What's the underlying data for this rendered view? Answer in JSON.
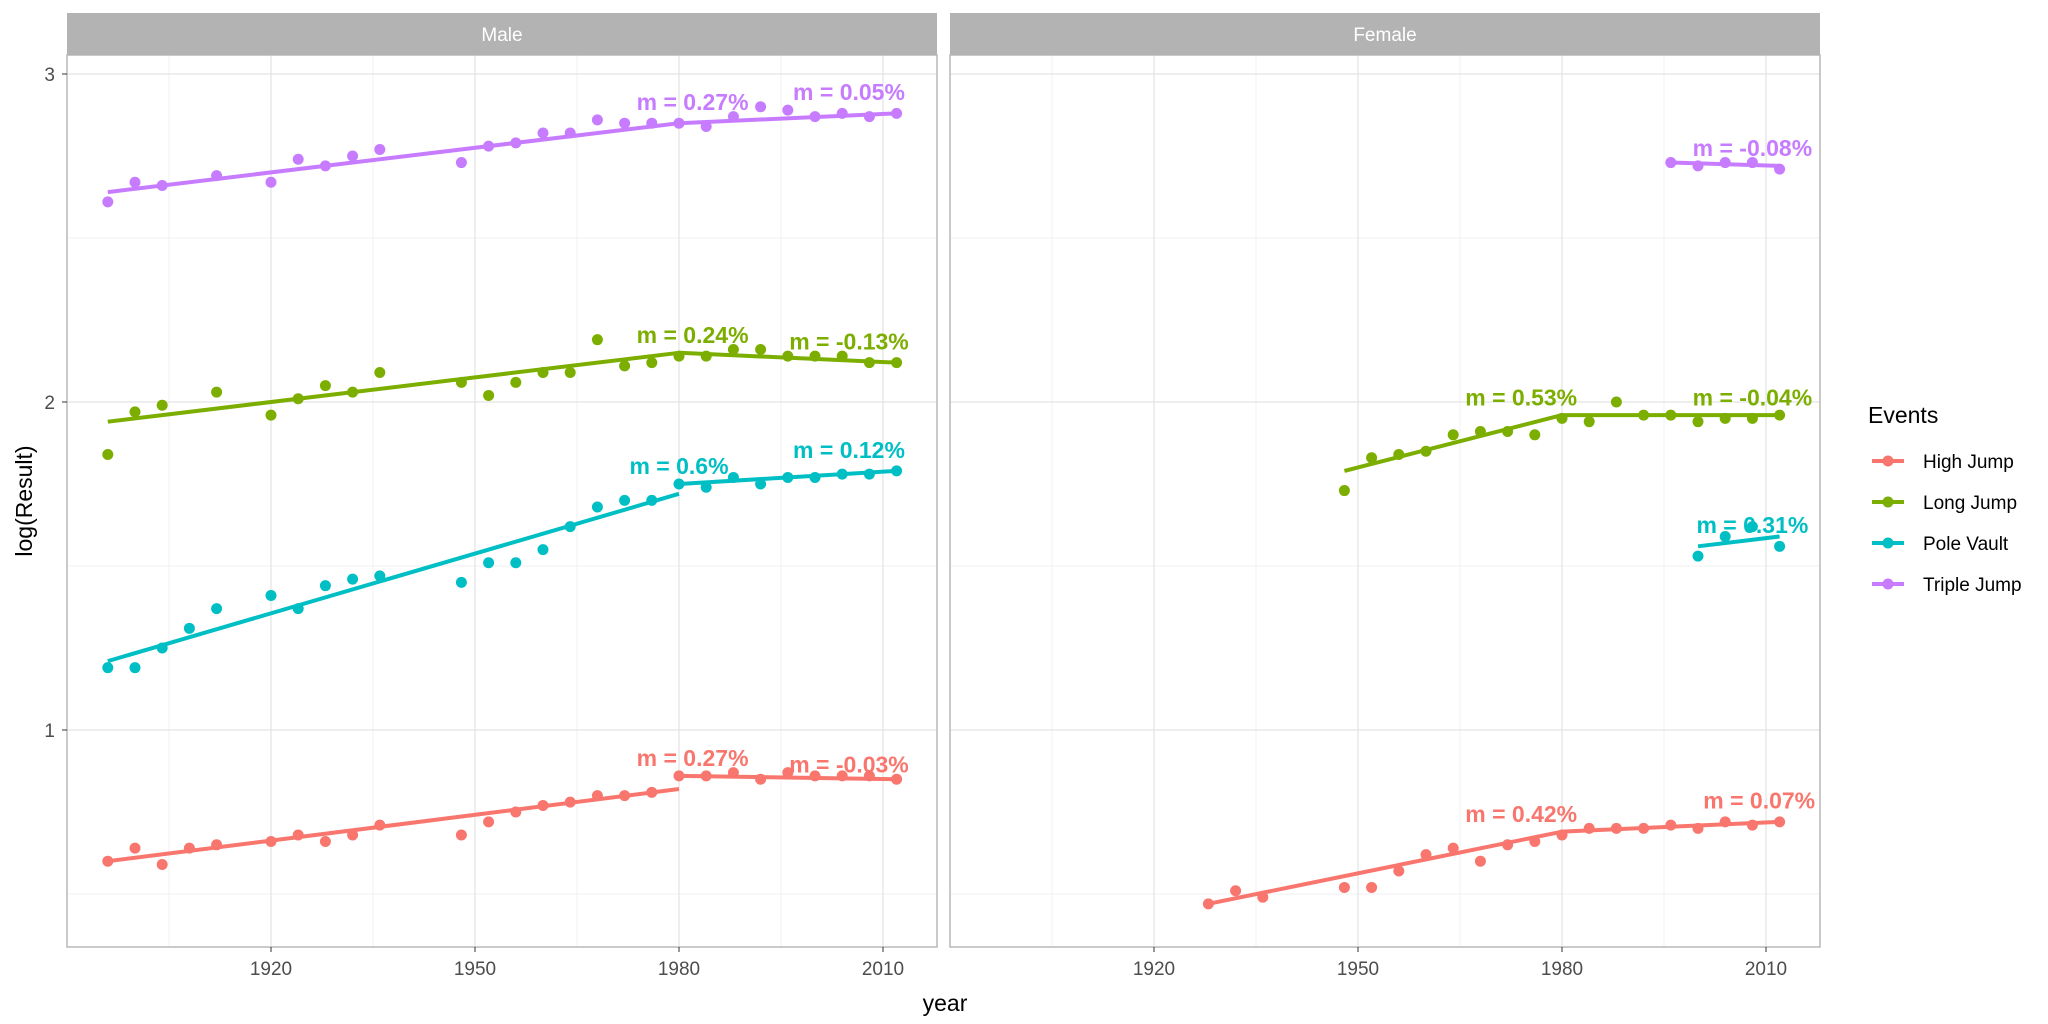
{
  "chart_data": {
    "type": "scatter",
    "title": "",
    "xlabel": "year",
    "ylabel": "log(Result)",
    "xlim": [
      1890,
      2018
    ],
    "ylim": [
      0.45,
      3.05
    ],
    "x_ticks": [
      1920,
      1950,
      1980,
      2010
    ],
    "y_ticks": [
      1,
      2,
      3
    ],
    "grid": true,
    "facets": [
      "Male",
      "Female"
    ],
    "legend": {
      "title": "Events",
      "position": "right",
      "entries": [
        {
          "name": "High Jump",
          "color": "#F8766D"
        },
        {
          "name": "Long Jump",
          "color": "#7CAE00"
        },
        {
          "name": "Pole Vault",
          "color": "#00BFC4"
        },
        {
          "name": "Triple Jump",
          "color": "#C77CFF"
        }
      ]
    },
    "panels": [
      {
        "facet": "Male",
        "series": [
          {
            "name": "Triple Jump",
            "color": "#C77CFF",
            "points": [
              [
                1896,
                2.61
              ],
              [
                1900,
                2.67
              ],
              [
                1904,
                2.66
              ],
              [
                1912,
                2.69
              ],
              [
                1920,
                2.67
              ],
              [
                1924,
                2.74
              ],
              [
                1928,
                2.72
              ],
              [
                1932,
                2.75
              ],
              [
                1936,
                2.77
              ],
              [
                1948,
                2.73
              ],
              [
                1952,
                2.78
              ],
              [
                1956,
                2.79
              ],
              [
                1960,
                2.82
              ],
              [
                1964,
                2.82
              ],
              [
                1968,
                2.86
              ],
              [
                1972,
                2.85
              ],
              [
                1976,
                2.85
              ],
              [
                1980,
                2.85
              ],
              [
                1984,
                2.84
              ],
              [
                1988,
                2.87
              ],
              [
                1992,
                2.9
              ],
              [
                1996,
                2.89
              ],
              [
                2000,
                2.87
              ],
              [
                2004,
                2.88
              ],
              [
                2008,
                2.87
              ],
              [
                2012,
                2.88
              ]
            ],
            "fits": [
              {
                "x": [
                  1896,
                  1980
                ],
                "y": [
                  2.64,
                  2.85
                ],
                "label": "m = 0.27%",
                "label_pos": [
                  1982,
                  2.89
                ]
              },
              {
                "x": [
                  1980,
                  2012
                ],
                "y": [
                  2.85,
                  2.88
                ],
                "label": "m = 0.05%",
                "label_pos": [
                  2005,
                  2.92
                ]
              }
            ]
          },
          {
            "name": "Long Jump",
            "color": "#7CAE00",
            "points": [
              [
                1896,
                1.84
              ],
              [
                1900,
                1.97
              ],
              [
                1904,
                1.99
              ],
              [
                1912,
                2.03
              ],
              [
                1920,
                1.96
              ],
              [
                1924,
                2.01
              ],
              [
                1928,
                2.05
              ],
              [
                1932,
                2.03
              ],
              [
                1936,
                2.09
              ],
              [
                1948,
                2.06
              ],
              [
                1952,
                2.02
              ],
              [
                1956,
                2.06
              ],
              [
                1960,
                2.09
              ],
              [
                1964,
                2.09
              ],
              [
                1968,
                2.19
              ],
              [
                1972,
                2.11
              ],
              [
                1976,
                2.12
              ],
              [
                1980,
                2.14
              ],
              [
                1984,
                2.14
              ],
              [
                1988,
                2.16
              ],
              [
                1992,
                2.16
              ],
              [
                1996,
                2.14
              ],
              [
                2000,
                2.14
              ],
              [
                2004,
                2.14
              ],
              [
                2008,
                2.12
              ],
              [
                2012,
                2.12
              ]
            ],
            "fits": [
              {
                "x": [
                  1896,
                  1980
                ],
                "y": [
                  1.94,
                  2.15
                ],
                "label": "m = 0.24%",
                "label_pos": [
                  1982,
                  2.18
                ]
              },
              {
                "x": [
                  1980,
                  2012
                ],
                "y": [
                  2.15,
                  2.12
                ],
                "label": "m = -0.13%",
                "label_pos": [
                  2005,
                  2.16
                ]
              }
            ]
          },
          {
            "name": "Pole Vault",
            "color": "#00BFC4",
            "points": [
              [
                1896,
                1.19
              ],
              [
                1900,
                1.19
              ],
              [
                1904,
                1.25
              ],
              [
                1908,
                1.31
              ],
              [
                1912,
                1.37
              ],
              [
                1920,
                1.41
              ],
              [
                1924,
                1.37
              ],
              [
                1928,
                1.44
              ],
              [
                1932,
                1.46
              ],
              [
                1936,
                1.47
              ],
              [
                1948,
                1.45
              ],
              [
                1952,
                1.51
              ],
              [
                1956,
                1.51
              ],
              [
                1960,
                1.55
              ],
              [
                1964,
                1.62
              ],
              [
                1968,
                1.68
              ],
              [
                1972,
                1.7
              ],
              [
                1976,
                1.7
              ],
              [
                1980,
                1.75
              ],
              [
                1984,
                1.74
              ],
              [
                1988,
                1.77
              ],
              [
                1992,
                1.75
              ],
              [
                1996,
                1.77
              ],
              [
                2000,
                1.77
              ],
              [
                2004,
                1.78
              ],
              [
                2008,
                1.78
              ],
              [
                2012,
                1.79
              ]
            ],
            "fits": [
              {
                "x": [
                  1896,
                  1980
                ],
                "y": [
                  1.21,
                  1.72
                ],
                "label": "m = 0.6%",
                "label_pos": [
                  1980,
                  1.78
                ]
              },
              {
                "x": [
                  1980,
                  2012
                ],
                "y": [
                  1.75,
                  1.79
                ],
                "label": "m = 0.12%",
                "label_pos": [
                  2005,
                  1.83
                ]
              }
            ]
          },
          {
            "name": "High Jump",
            "color": "#F8766D",
            "points": [
              [
                1896,
                0.6
              ],
              [
                1900,
                0.64
              ],
              [
                1904,
                0.59
              ],
              [
                1908,
                0.64
              ],
              [
                1912,
                0.65
              ],
              [
                1920,
                0.66
              ],
              [
                1924,
                0.68
              ],
              [
                1928,
                0.66
              ],
              [
                1932,
                0.68
              ],
              [
                1936,
                0.71
              ],
              [
                1948,
                0.68
              ],
              [
                1952,
                0.72
              ],
              [
                1956,
                0.75
              ],
              [
                1960,
                0.77
              ],
              [
                1964,
                0.78
              ],
              [
                1968,
                0.8
              ],
              [
                1972,
                0.8
              ],
              [
                1976,
                0.81
              ],
              [
                1980,
                0.86
              ],
              [
                1984,
                0.86
              ],
              [
                1988,
                0.87
              ],
              [
                1992,
                0.85
              ],
              [
                1996,
                0.87
              ],
              [
                2000,
                0.86
              ],
              [
                2004,
                0.86
              ],
              [
                2008,
                0.86
              ],
              [
                2012,
                0.85
              ]
            ],
            "fits": [
              {
                "x": [
                  1896,
                  1980
                ],
                "y": [
                  0.6,
                  0.82
                ],
                "label": "m = 0.27%",
                "label_pos": [
                  1982,
                  0.89
                ]
              },
              {
                "x": [
                  1980,
                  2012
                ],
                "y": [
                  0.86,
                  0.85
                ],
                "label": "m = -0.03%",
                "label_pos": [
                  2005,
                  0.87
                ]
              }
            ]
          }
        ]
      },
      {
        "facet": "Female",
        "series": [
          {
            "name": "Triple Jump",
            "color": "#C77CFF",
            "points": [
              [
                1996,
                2.73
              ],
              [
                2000,
                2.72
              ],
              [
                2004,
                2.73
              ],
              [
                2008,
                2.73
              ],
              [
                2012,
                2.71
              ]
            ],
            "fits": [
              {
                "x": [
                  1996,
                  2012
                ],
                "y": [
                  2.73,
                  2.72
                ],
                "label": "m = -0.08%",
                "label_pos": [
                  2008,
                  2.75
                ]
              }
            ]
          },
          {
            "name": "Long Jump",
            "color": "#7CAE00",
            "points": [
              [
                1948,
                1.73
              ],
              [
                1952,
                1.83
              ],
              [
                1956,
                1.84
              ],
              [
                1960,
                1.85
              ],
              [
                1964,
                1.9
              ],
              [
                1968,
                1.91
              ],
              [
                1972,
                1.91
              ],
              [
                1976,
                1.9
              ],
              [
                1980,
                1.95
              ],
              [
                1984,
                1.94
              ],
              [
                1988,
                2.0
              ],
              [
                1992,
                1.96
              ],
              [
                1996,
                1.96
              ],
              [
                2000,
                1.94
              ],
              [
                2004,
                1.95
              ],
              [
                2008,
                1.95
              ],
              [
                2012,
                1.96
              ]
            ],
            "fits": [
              {
                "x": [
                  1948,
                  1980
                ],
                "y": [
                  1.79,
                  1.96
                ],
                "label": "m = 0.53%",
                "label_pos": [
                  1974,
                  1.99
                ]
              },
              {
                "x": [
                  1980,
                  2012
                ],
                "y": [
                  1.96,
                  1.96
                ],
                "label": "m = -0.04%",
                "label_pos": [
                  2008,
                  1.99
                ]
              }
            ]
          },
          {
            "name": "Pole Vault",
            "color": "#00BFC4",
            "points": [
              [
                2000,
                1.53
              ],
              [
                2004,
                1.59
              ],
              [
                2008,
                1.62
              ],
              [
                2012,
                1.56
              ]
            ],
            "fits": [
              {
                "x": [
                  2000,
                  2012
                ],
                "y": [
                  1.56,
                  1.59
                ],
                "label": "m = 0.31%",
                "label_pos": [
                  2008,
                  1.6
                ]
              }
            ]
          },
          {
            "name": "High Jump",
            "color": "#F8766D",
            "points": [
              [
                1928,
                0.47
              ],
              [
                1932,
                0.51
              ],
              [
                1936,
                0.49
              ],
              [
                1948,
                0.52
              ],
              [
                1952,
                0.52
              ],
              [
                1956,
                0.57
              ],
              [
                1960,
                0.62
              ],
              [
                1964,
                0.64
              ],
              [
                1968,
                0.6
              ],
              [
                1972,
                0.65
              ],
              [
                1976,
                0.66
              ],
              [
                1980,
                0.68
              ],
              [
                1984,
                0.7
              ],
              [
                1988,
                0.7
              ],
              [
                1992,
                0.7
              ],
              [
                1996,
                0.71
              ],
              [
                2000,
                0.7
              ],
              [
                2004,
                0.72
              ],
              [
                2008,
                0.71
              ],
              [
                2012,
                0.72
              ]
            ],
            "fits": [
              {
                "x": [
                  1928,
                  1980
                ],
                "y": [
                  0.47,
                  0.69
                ],
                "label": "m = 0.42%",
                "label_pos": [
                  1974,
                  0.72
                ]
              },
              {
                "x": [
                  1980,
                  2012
                ],
                "y": [
                  0.69,
                  0.72
                ],
                "label": "m = 0.07%",
                "label_pos": [
                  2009,
                  0.76
                ]
              }
            ]
          }
        ]
      }
    ]
  }
}
